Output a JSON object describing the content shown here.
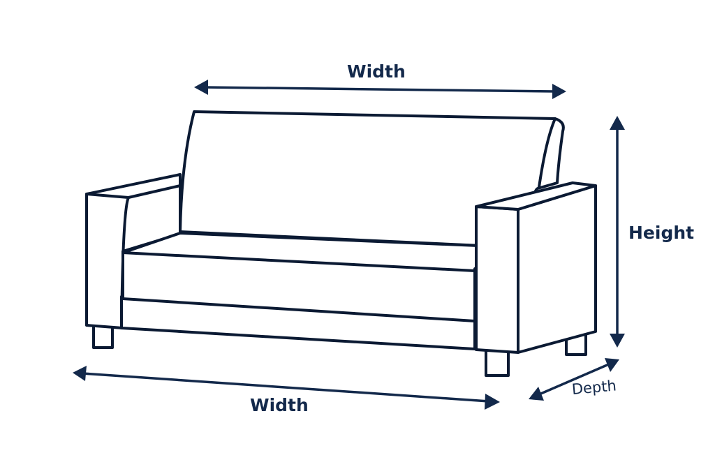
{
  "diagram": {
    "labels": {
      "width_top": "Width",
      "width_bottom": "Width",
      "height": "Height",
      "depth": "Depth"
    },
    "colors": {
      "outline": "#0b1a33",
      "dimension": "#13294b",
      "background": "#ffffff"
    },
    "subject": "sofa-outline"
  }
}
